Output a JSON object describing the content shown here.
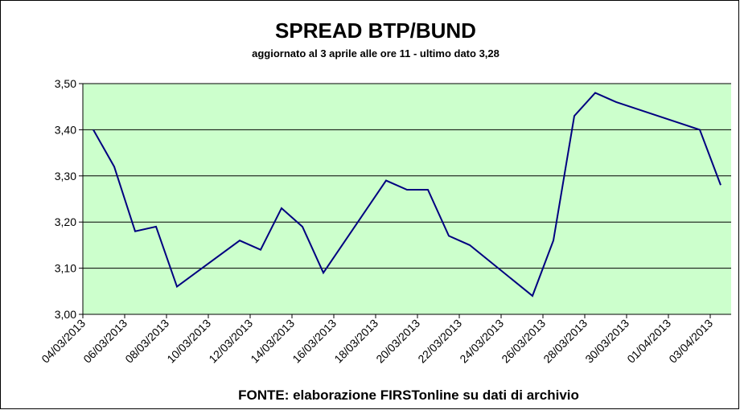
{
  "chart_data": {
    "type": "line",
    "title": "SPREAD  BTP/BUND",
    "subtitle": "aggiornato al 3 aprile alle ore 11 - ultimo dato 3,28",
    "source": "FONTE: elaborazione FIRSTonline su dati di archivio",
    "x": [
      "04/03/2013",
      "05/03/2013",
      "06/03/2013",
      "07/03/2013",
      "08/03/2013",
      "11/03/2013",
      "12/03/2013",
      "13/03/2013",
      "14/03/2013",
      "15/03/2013",
      "18/03/2013",
      "19/03/2013",
      "20/03/2013",
      "21/03/2013",
      "22/03/2013",
      "25/03/2013",
      "26/03/2013",
      "27/03/2013",
      "28/03/2013",
      "29/03/2013",
      "02/04/2013",
      "03/04/2013"
    ],
    "series": [
      {
        "name": "Spread",
        "color": "#000080",
        "values": [
          3.4,
          3.32,
          3.18,
          3.19,
          3.06,
          3.16,
          3.14,
          3.23,
          3.19,
          3.09,
          3.29,
          3.27,
          3.27,
          3.17,
          3.15,
          3.04,
          3.16,
          3.43,
          3.48,
          3.46,
          3.4,
          3.28
        ]
      }
    ],
    "xticks": [
      "04/03/2013",
      "06/03/2013",
      "08/03/2013",
      "10/03/2013",
      "12/03/2013",
      "14/03/2013",
      "16/03/2013",
      "18/03/2013",
      "20/03/2013",
      "22/03/2013",
      "24/03/2013",
      "26/03/2013",
      "28/03/2013",
      "30/03/2013",
      "01/04/2013",
      "03/04/2013"
    ],
    "ylim": [
      3.0,
      3.5
    ],
    "yticks": [
      {
        "value": 3.0,
        "label": "3,00"
      },
      {
        "value": 3.1,
        "label": "3,10"
      },
      {
        "value": 3.2,
        "label": "3,20"
      },
      {
        "value": 3.3,
        "label": "3,30"
      },
      {
        "value": 3.4,
        "label": "3,40"
      },
      {
        "value": 3.5,
        "label": "3,50"
      }
    ],
    "grid": true,
    "background": "#ccffcc"
  }
}
